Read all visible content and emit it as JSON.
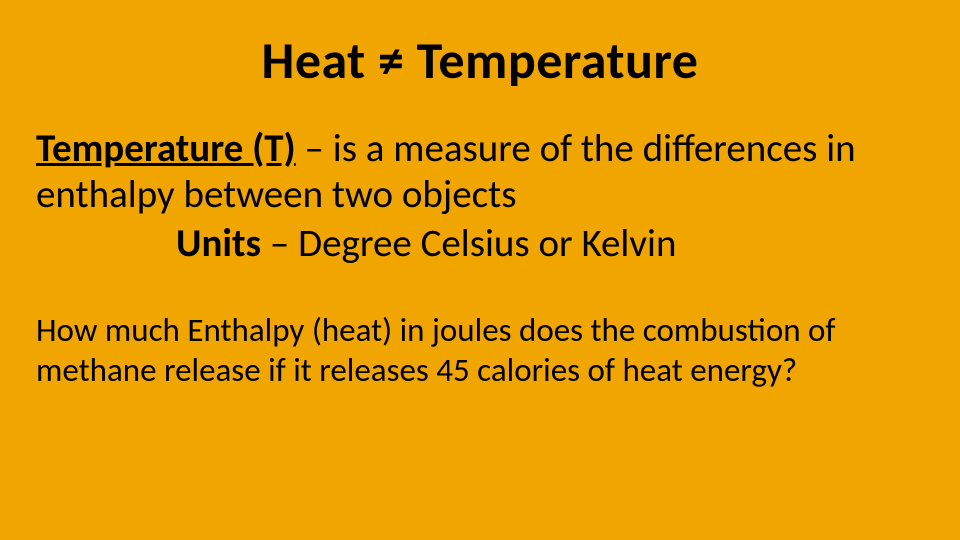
{
  "background_color": "#f0a500",
  "text_color": "#000000",
  "title": "Heat ≠ Temperature",
  "title_fontsize": 52,
  "title_fontweight": 700,
  "definition": {
    "term": "Temperature (T)",
    "separator": " – ",
    "text": "is a measure of the differences in enthalpy between two objects",
    "fontsize": 39
  },
  "units": {
    "label": "Units",
    "separator": " – ",
    "text": "Degree Celsius or Kelvin",
    "fontsize": 39
  },
  "question": {
    "text": "How much Enthalpy (heat) in joules does the combustion of methane release if it releases 45 calories of heat energy?",
    "fontsize": 33
  }
}
